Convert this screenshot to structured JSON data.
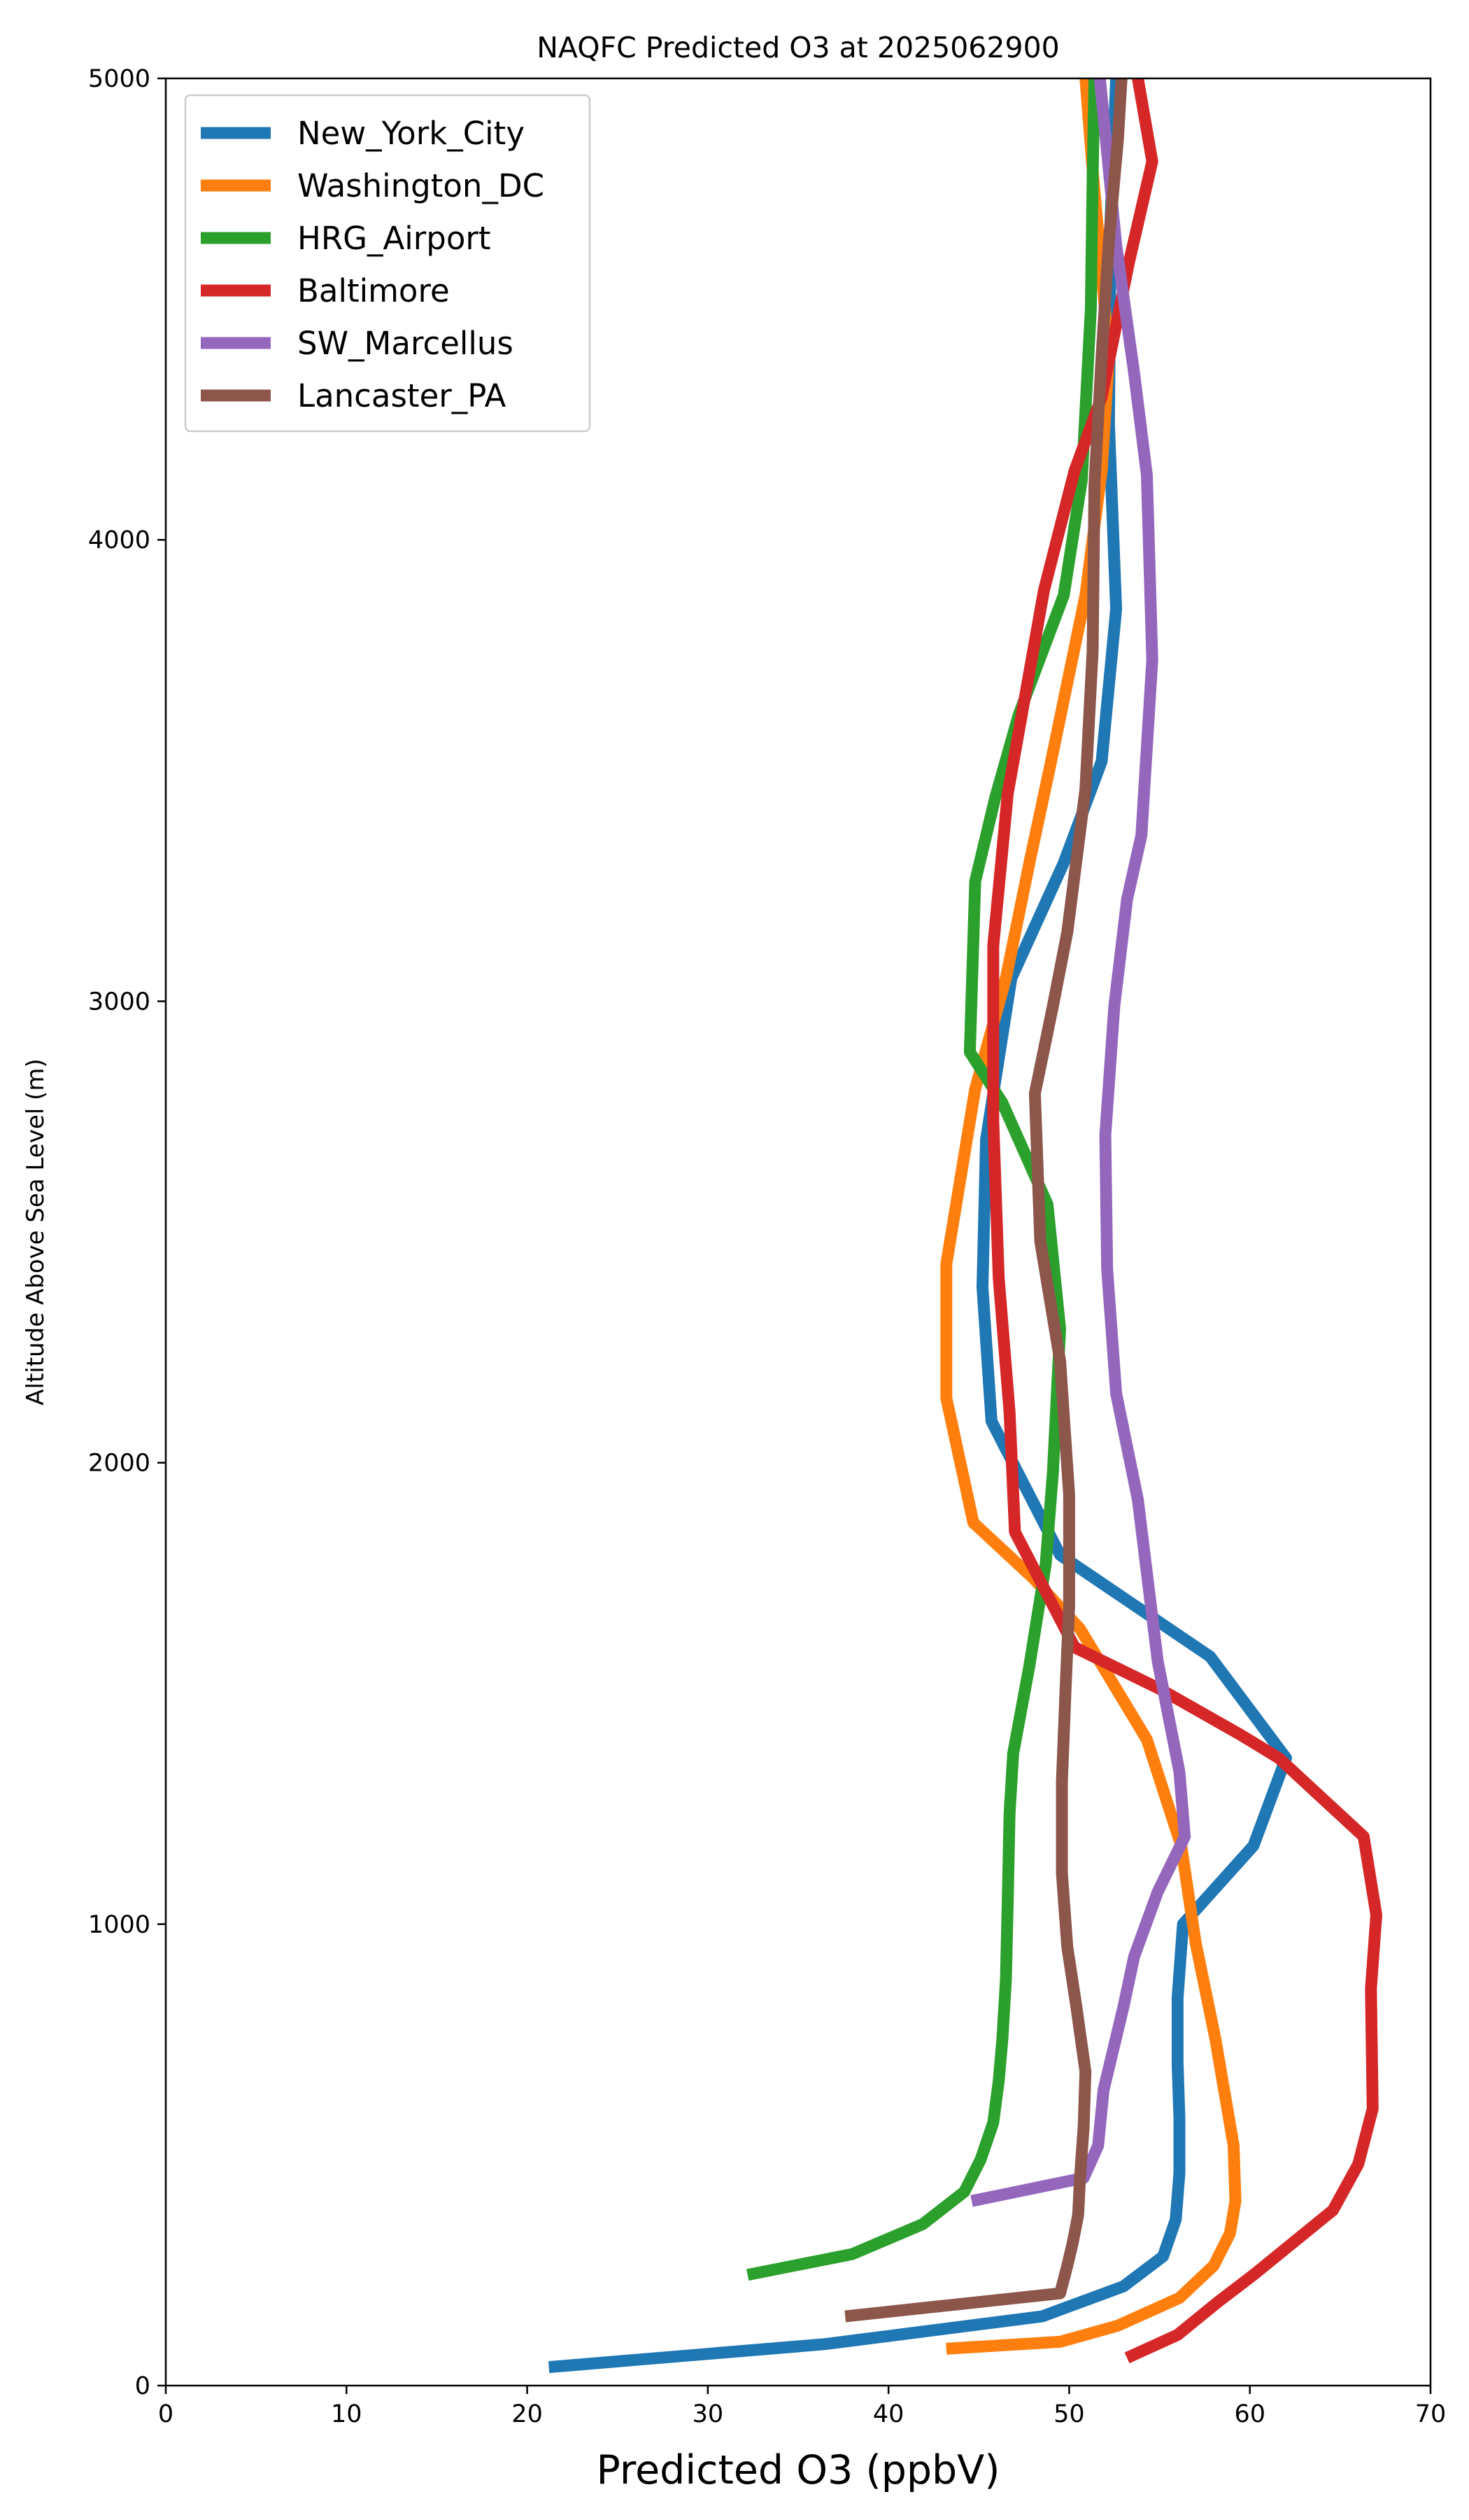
{
  "chart_data": {
    "type": "line",
    "title": "NAQFC Predicted O3 at 2025062900",
    "xlabel": "Predicted O3 (ppbV)",
    "ylabel": "Altitude Above Sea Level (m)",
    "xlim": [
      0,
      70
    ],
    "ylim": [
      0,
      5000
    ],
    "xticks": [
      0,
      10,
      20,
      30,
      40,
      50,
      60,
      70
    ],
    "yticks": [
      0,
      1000,
      2000,
      3000,
      4000,
      5000
    ],
    "grid": false,
    "legend": "upper-left",
    "series": [
      {
        "name": "New_York_City",
        "color": "#1f77b4",
        "points": [
          [
            21.2,
            40
          ],
          [
            36.5,
            90
          ],
          [
            48.5,
            150
          ],
          [
            53.0,
            215
          ],
          [
            55.2,
            280
          ],
          [
            55.9,
            360
          ],
          [
            56.1,
            460
          ],
          [
            56.1,
            580
          ],
          [
            56.0,
            700
          ],
          [
            56.0,
            840
          ],
          [
            56.3,
            1000
          ],
          [
            60.2,
            1170
          ],
          [
            62.0,
            1360
          ],
          [
            57.8,
            1580
          ],
          [
            49.5,
            1800
          ],
          [
            45.7,
            2090
          ],
          [
            45.2,
            2380
          ],
          [
            45.4,
            2700
          ],
          [
            46.8,
            3050
          ],
          [
            49.7,
            3300
          ],
          [
            51.8,
            3520
          ],
          [
            52.6,
            3850
          ],
          [
            52.2,
            4250
          ],
          [
            52.3,
            4700
          ],
          [
            52.6,
            5000
          ]
        ]
      },
      {
        "name": "Washington_DC",
        "color": "#ff7f0e",
        "points": [
          [
            43.2,
            80
          ],
          [
            49.5,
            95
          ],
          [
            52.7,
            130
          ],
          [
            56.1,
            190
          ],
          [
            58.0,
            260
          ],
          [
            58.9,
            330
          ],
          [
            59.2,
            400
          ],
          [
            59.1,
            520
          ],
          [
            58.1,
            750
          ],
          [
            57.0,
            960
          ],
          [
            56.2,
            1170
          ],
          [
            54.3,
            1400
          ],
          [
            50.6,
            1640
          ],
          [
            48.0,
            1750
          ],
          [
            44.7,
            1870
          ],
          [
            43.2,
            2140
          ],
          [
            43.2,
            2430
          ],
          [
            44.8,
            2810
          ],
          [
            46.5,
            3050
          ],
          [
            47.8,
            3300
          ],
          [
            49.0,
            3520
          ],
          [
            50.9,
            3880
          ],
          [
            51.8,
            4150
          ],
          [
            52.2,
            4400
          ],
          [
            51.3,
            4800
          ],
          [
            50.9,
            5000
          ]
        ]
      },
      {
        "name": "HRG_Airport",
        "color": "#2ca02c",
        "points": [
          [
            32.2,
            240
          ],
          [
            38.0,
            285
          ],
          [
            41.9,
            350
          ],
          [
            44.2,
            420
          ],
          [
            45.1,
            490
          ],
          [
            45.8,
            570
          ],
          [
            46.1,
            660
          ],
          [
            46.3,
            750
          ],
          [
            46.5,
            880
          ],
          [
            46.6,
            1050
          ],
          [
            46.7,
            1240
          ],
          [
            46.9,
            1370
          ],
          [
            47.8,
            1560
          ],
          [
            48.7,
            1780
          ],
          [
            49.1,
            1980
          ],
          [
            49.5,
            2290
          ],
          [
            48.8,
            2560
          ],
          [
            46.3,
            2780
          ],
          [
            44.5,
            2890
          ],
          [
            44.8,
            3260
          ],
          [
            45.9,
            3440
          ],
          [
            47.2,
            3620
          ],
          [
            49.7,
            3880
          ],
          [
            50.7,
            4130
          ],
          [
            51.2,
            4500
          ],
          [
            51.3,
            4790
          ],
          [
            51.4,
            5000
          ]
        ]
      },
      {
        "name": "Baltimore",
        "color": "#d62728",
        "points": [
          [
            53.2,
            60
          ],
          [
            56.0,
            110
          ],
          [
            58.2,
            180
          ],
          [
            60.2,
            240
          ],
          [
            62.4,
            310
          ],
          [
            64.6,
            380
          ],
          [
            66.0,
            480
          ],
          [
            66.8,
            600
          ],
          [
            66.7,
            860
          ],
          [
            67.0,
            1020
          ],
          [
            66.3,
            1190
          ],
          [
            61.6,
            1360
          ],
          [
            59.5,
            1410
          ],
          [
            55.0,
            1510
          ],
          [
            50.3,
            1600
          ],
          [
            47.0,
            1850
          ],
          [
            46.7,
            2110
          ],
          [
            46.1,
            2400
          ],
          [
            45.8,
            2740
          ],
          [
            45.8,
            3120
          ],
          [
            46.6,
            3450
          ],
          [
            48.6,
            3890
          ],
          [
            50.3,
            4150
          ],
          [
            51.8,
            4310
          ],
          [
            53.3,
            4600
          ],
          [
            54.6,
            4820
          ],
          [
            53.8,
            5000
          ]
        ]
      },
      {
        "name": "SW_Marcellus",
        "color": "#9467bd",
        "points": [
          [
            44.6,
            400
          ],
          [
            50.8,
            450
          ],
          [
            51.6,
            520
          ],
          [
            51.9,
            640
          ],
          [
            53.0,
            820
          ],
          [
            53.6,
            930
          ],
          [
            54.9,
            1070
          ],
          [
            56.4,
            1190
          ],
          [
            56.1,
            1330
          ],
          [
            54.9,
            1570
          ],
          [
            53.8,
            1920
          ],
          [
            52.6,
            2150
          ],
          [
            52.1,
            2420
          ],
          [
            52.0,
            2710
          ],
          [
            52.5,
            2990
          ],
          [
            53.2,
            3220
          ],
          [
            54.0,
            3360
          ],
          [
            54.6,
            3740
          ],
          [
            54.3,
            4140
          ],
          [
            53.6,
            4360
          ],
          [
            52.6,
            4640
          ],
          [
            51.7,
            5000
          ]
        ]
      },
      {
        "name": "Lancaster_PA",
        "color": "#8c564b",
        "points": [
          [
            37.6,
            150
          ],
          [
            49.5,
            200
          ],
          [
            49.9,
            260
          ],
          [
            50.2,
            310
          ],
          [
            50.5,
            370
          ],
          [
            50.6,
            450
          ],
          [
            50.8,
            560
          ],
          [
            50.9,
            680
          ],
          [
            50.4,
            820
          ],
          [
            49.9,
            950
          ],
          [
            49.6,
            1110
          ],
          [
            49.6,
            1310
          ],
          [
            49.8,
            1510
          ],
          [
            50.0,
            1690
          ],
          [
            50.0,
            1930
          ],
          [
            49.5,
            2220
          ],
          [
            48.4,
            2480
          ],
          [
            48.1,
            2800
          ],
          [
            49.1,
            2990
          ],
          [
            49.9,
            3150
          ],
          [
            50.9,
            3460
          ],
          [
            51.3,
            3760
          ],
          [
            51.4,
            4120
          ],
          [
            51.8,
            4400
          ],
          [
            52.2,
            4650
          ],
          [
            52.7,
            4870
          ],
          [
            52.9,
            5000
          ]
        ]
      }
    ]
  }
}
